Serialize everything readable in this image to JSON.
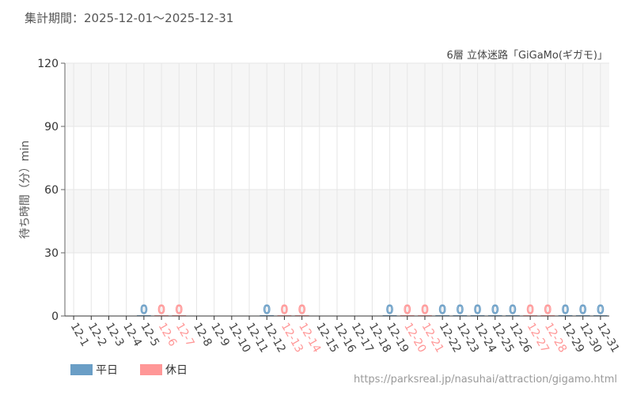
{
  "period_label": "集計期間：2025-12-01〜2025-12-31",
  "source_url": "https://parksreal.jp/nasuhai/attraction/gigamo.html",
  "chart_data": {
    "type": "bar",
    "title": "6層 立体迷路「GiGaMo(ギガモ)」",
    "ylabel": "待ち時間（分）min",
    "ylim": [
      0,
      120
    ],
    "yticks": [
      0,
      30,
      60,
      90,
      120
    ],
    "grid": true,
    "legend_placement": "bottom-left",
    "colors": {
      "weekday": "#6a9ec6",
      "holiday": "#ff9797"
    },
    "legend": [
      {
        "key": "weekday",
        "label": "平日"
      },
      {
        "key": "holiday",
        "label": "休日"
      }
    ],
    "categories": [
      "12-1",
      "12-2",
      "12-3",
      "12-4",
      "12-5",
      "12-6",
      "12-7",
      "12-8",
      "12-9",
      "12-10",
      "12-11",
      "12-12",
      "12-13",
      "12-14",
      "12-15",
      "12-16",
      "12-17",
      "12-18",
      "12-19",
      "12-20",
      "12-21",
      "12-22",
      "12-23",
      "12-24",
      "12-25",
      "12-26",
      "12-27",
      "12-28",
      "12-29",
      "12-30",
      "12-31"
    ],
    "holiday": [
      false,
      false,
      false,
      false,
      false,
      true,
      true,
      false,
      false,
      false,
      false,
      false,
      true,
      true,
      false,
      false,
      false,
      false,
      false,
      true,
      true,
      false,
      false,
      false,
      false,
      false,
      true,
      true,
      false,
      false,
      false
    ],
    "values": [
      null,
      null,
      null,
      null,
      0,
      0,
      0,
      null,
      null,
      null,
      null,
      0,
      0,
      0,
      null,
      null,
      null,
      null,
      0,
      0,
      0,
      0,
      0,
      0,
      0,
      0,
      0,
      0,
      0,
      0,
      0
    ]
  }
}
